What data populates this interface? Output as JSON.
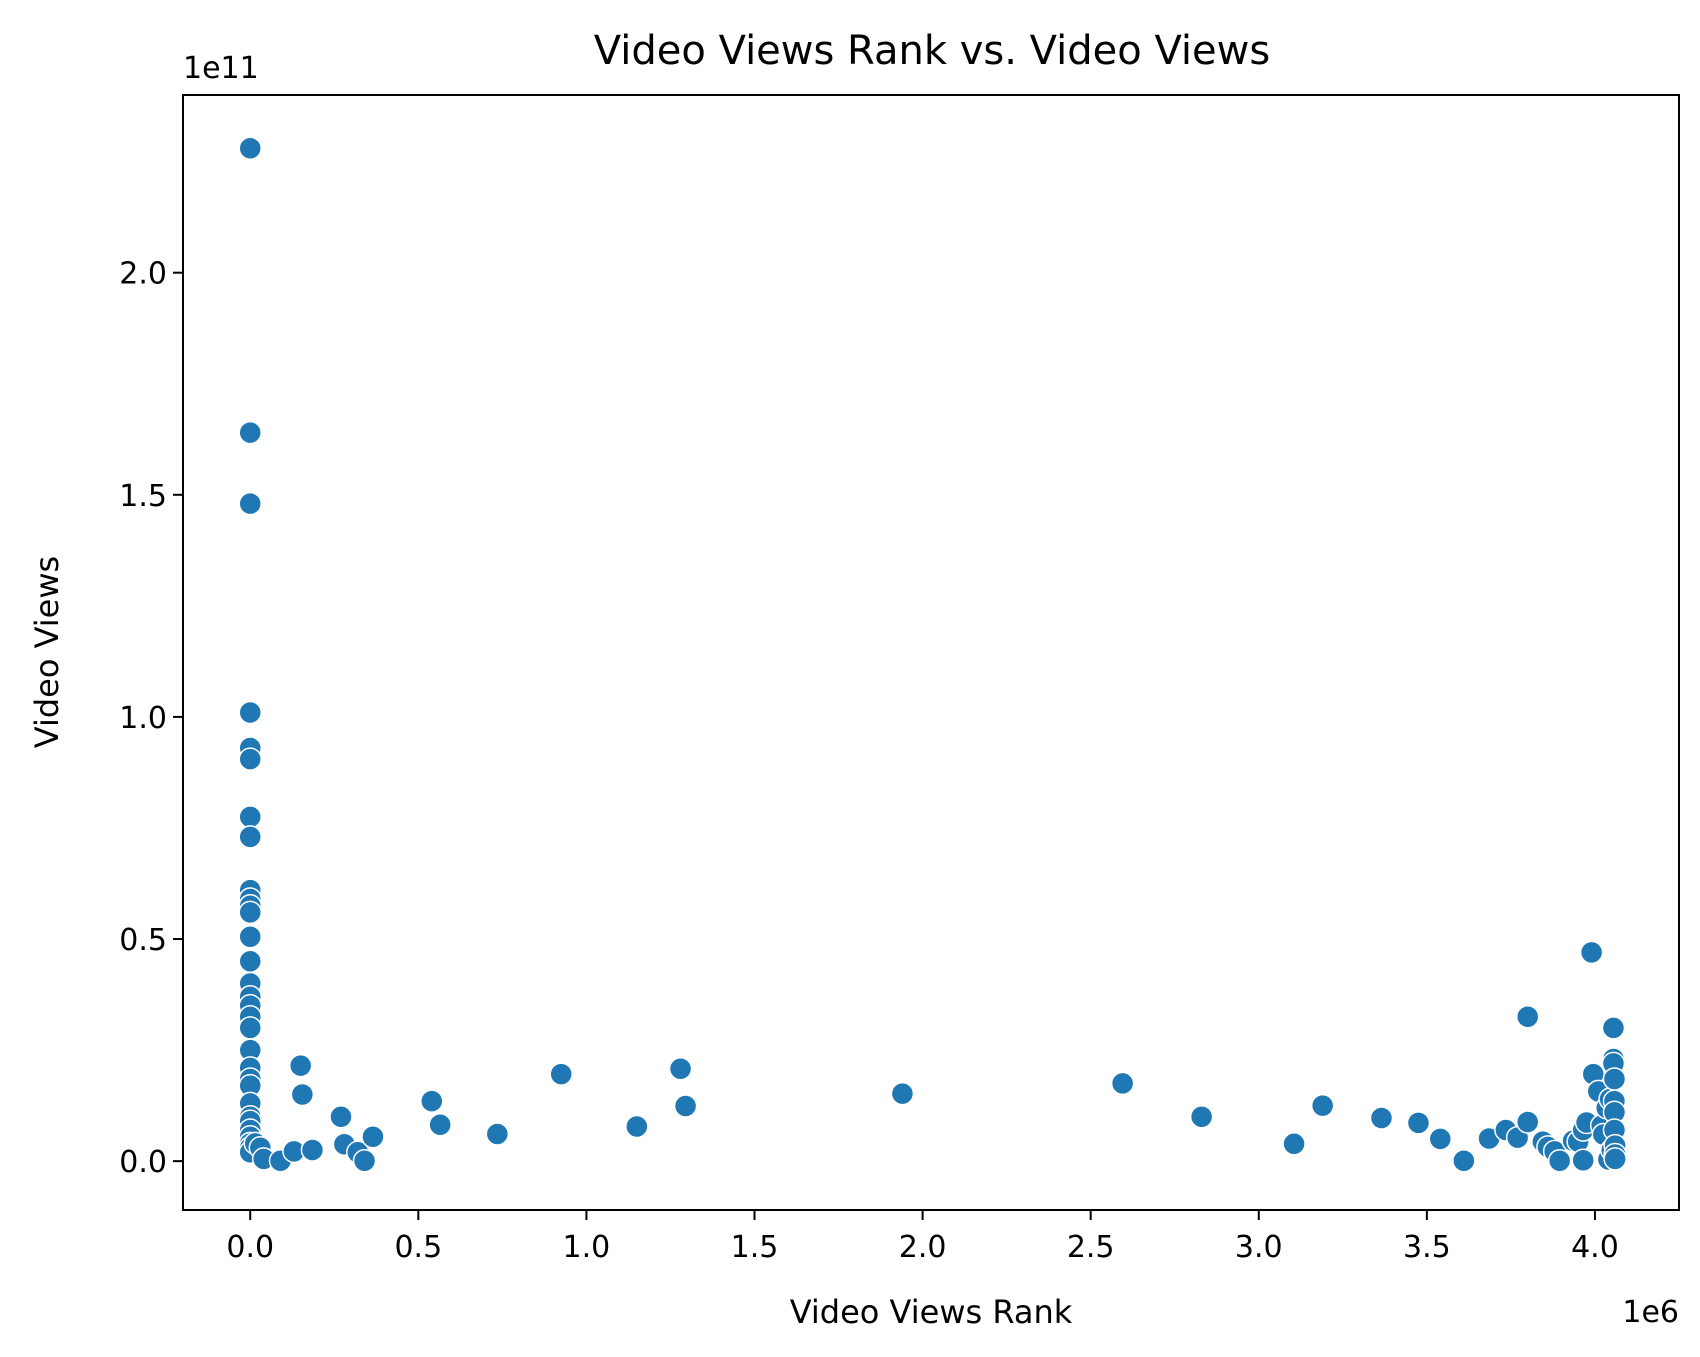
{
  "chart_data": {
    "type": "scatter",
    "title": "Video Views Rank vs. Video Views",
    "xlabel": "Video Views Rank",
    "ylabel": "Video Views",
    "x_multiplier": "1e6",
    "y_multiplier": "1e11",
    "xlim": [
      -200000,
      4250000
    ],
    "ylim": [
      -11000000000,
      240000000000
    ],
    "xticks": [
      0,
      500000,
      1000000,
      1500000,
      2000000,
      2500000,
      3000000,
      3500000,
      4000000
    ],
    "xtick_labels": [
      "0.0",
      "0.5",
      "1.0",
      "1.5",
      "2.0",
      "2.5",
      "3.0",
      "3.5",
      "4.0"
    ],
    "yticks": [
      0,
      50000000000,
      100000000000,
      150000000000,
      200000000000
    ],
    "ytick_labels": [
      "0.0",
      "0.5",
      "1.0",
      "1.5",
      "2.0"
    ],
    "grid": false,
    "marker_color": "#1f77b4",
    "points": [
      [
        1,
        228000000000
      ],
      [
        2,
        164000000000
      ],
      [
        3,
        148000000000
      ],
      [
        4,
        101000000000
      ],
      [
        5,
        93000000000
      ],
      [
        6,
        90500000000
      ],
      [
        7,
        77500000000
      ],
      [
        8,
        73000000000
      ],
      [
        9,
        61000000000
      ],
      [
        10,
        59000000000
      ],
      [
        11,
        57500000000
      ],
      [
        12,
        56000000000
      ],
      [
        13,
        50500000000
      ],
      [
        14,
        45000000000
      ],
      [
        15,
        40000000000
      ],
      [
        16,
        37000000000
      ],
      [
        17,
        35000000000
      ],
      [
        18,
        32500000000
      ],
      [
        19,
        30000000000
      ],
      [
        20,
        25000000000
      ],
      [
        21,
        21000000000
      ],
      [
        22,
        18500000000
      ],
      [
        23,
        17000000000
      ],
      [
        24,
        13000000000
      ],
      [
        25,
        10000000000
      ],
      [
        26,
        9000000000
      ],
      [
        27,
        7000000000
      ],
      [
        28,
        5500000000
      ],
      [
        29,
        4000000000
      ],
      [
        30,
        3000000000
      ],
      [
        31,
        2000000000
      ],
      [
        15000,
        4000000000
      ],
      [
        30000,
        3000000000
      ],
      [
        40000,
        500000000
      ],
      [
        90000,
        100000000
      ],
      [
        130000,
        2200000000
      ],
      [
        150000,
        21500000000
      ],
      [
        155000,
        15000000000
      ],
      [
        185000,
        2500000000
      ],
      [
        270000,
        10000000000
      ],
      [
        280000,
        3800000000
      ],
      [
        320000,
        2000000000
      ],
      [
        340000,
        100000000
      ],
      [
        365000,
        5500000000
      ],
      [
        540000,
        13500000000
      ],
      [
        565000,
        8200000000
      ],
      [
        735000,
        6100000000
      ],
      [
        925000,
        19600000000
      ],
      [
        1150000,
        7800000000
      ],
      [
        1280000,
        20800000000
      ],
      [
        1295000,
        12400000000
      ],
      [
        1940000,
        15200000000
      ],
      [
        2595000,
        17500000000
      ],
      [
        2830000,
        10000000000
      ],
      [
        3105000,
        3900000000
      ],
      [
        3190000,
        12500000000
      ],
      [
        3365000,
        9700000000
      ],
      [
        3475000,
        8600000000
      ],
      [
        3540000,
        5000000000
      ],
      [
        3610000,
        100000000
      ],
      [
        3685000,
        5100000000
      ],
      [
        3735000,
        7000000000
      ],
      [
        3770000,
        5300000000
      ],
      [
        3800000,
        32500000000
      ],
      [
        3800000,
        8800000000
      ],
      [
        3845000,
        4400000000
      ],
      [
        3860000,
        3200000000
      ],
      [
        3880000,
        2200000000
      ],
      [
        3895000,
        100000000
      ],
      [
        3935000,
        4600000000
      ],
      [
        3950000,
        4400000000
      ],
      [
        3965000,
        7000000000
      ],
      [
        3965000,
        200000000
      ],
      [
        3975000,
        8700000000
      ],
      [
        3990000,
        47000000000
      ],
      [
        3995000,
        19600000000
      ],
      [
        4010000,
        15700000000
      ],
      [
        4020000,
        8000000000
      ],
      [
        4025000,
        6000000000
      ],
      [
        4035000,
        12000000000
      ],
      [
        4040000,
        400000000
      ],
      [
        4045000,
        14000000000
      ],
      [
        4050000,
        2500000000
      ],
      [
        4055000,
        30000000000
      ],
      [
        4055000,
        23000000000
      ],
      [
        4055000,
        22000000000
      ],
      [
        4058000,
        18500000000
      ],
      [
        4058000,
        13500000000
      ],
      [
        4058000,
        11000000000
      ],
      [
        4058000,
        7000000000
      ],
      [
        4060000,
        3500000000
      ],
      [
        4060000,
        1500000000
      ],
      [
        4060000,
        500000000
      ]
    ]
  }
}
